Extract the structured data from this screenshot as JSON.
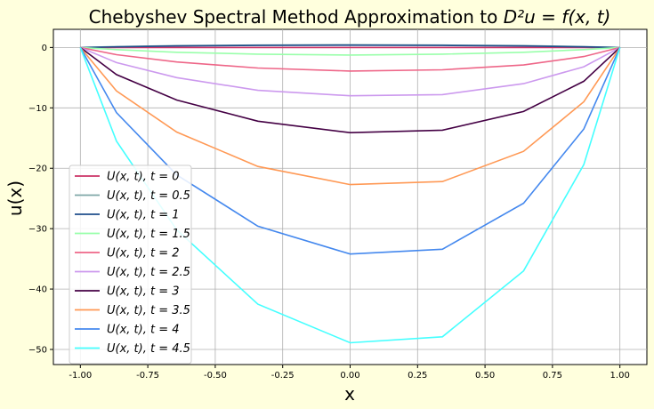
{
  "chart_data": {
    "type": "line",
    "title_text": "Chebyshev Spectral Method Approximation to ",
    "title_math": "D²u = f(x, t)",
    "xlabel": "x",
    "ylabel": "u(x)",
    "xlim": [
      -1.1,
      1.1
    ],
    "ylim": [
      -52.5,
      3.0
    ],
    "xticks": [
      "-1.00",
      "-0.75",
      "-0.50",
      "-0.25",
      "0.00",
      "0.25",
      "0.50",
      "0.75",
      "1.00"
    ],
    "xtick_values": [
      -1.0,
      -0.75,
      -0.5,
      -0.25,
      0.0,
      0.25,
      0.5,
      0.75,
      1.0
    ],
    "yticks": [
      "0",
      "−10",
      "−20",
      "−30",
      "−40",
      "−50"
    ],
    "ytick_values": [
      0,
      -10,
      -20,
      -30,
      -40,
      -50
    ],
    "grid": true,
    "legend_position": "lower-left",
    "x": [
      -1.0,
      -0.866,
      -0.643,
      -0.342,
      0.0,
      0.342,
      0.643,
      0.866,
      1.0
    ],
    "series": [
      {
        "name": "U(x, t), t = 0",
        "color": "#cc3366",
        "values": [
          0,
          0,
          0,
          0,
          0,
          0,
          0,
          0,
          0
        ]
      },
      {
        "name": "U(x, t), t = 0.5",
        "color": "#7fa8a8",
        "values": [
          0,
          0.15,
          0.3,
          0.4,
          0.45,
          0.4,
          0.3,
          0.15,
          0
        ]
      },
      {
        "name": "U(x, t), t = 1",
        "color": "#1f4e8c",
        "values": [
          0,
          0.1,
          0.25,
          0.33,
          0.38,
          0.33,
          0.25,
          0.1,
          0
        ]
      },
      {
        "name": "U(x, t), t = 1.5",
        "color": "#99ffaa",
        "values": [
          0,
          -0.35,
          -0.8,
          -1.1,
          -1.25,
          -1.1,
          -0.8,
          -0.35,
          0
        ]
      },
      {
        "name": "U(x, t), t = 2",
        "color": "#ee6688",
        "values": [
          0,
          -1.2,
          -2.4,
          -3.4,
          -3.9,
          -3.7,
          -2.9,
          -1.5,
          0
        ]
      },
      {
        "name": "U(x, t), t = 2.5",
        "color": "#cc99ee",
        "values": [
          0,
          -2.5,
          -5.0,
          -7.1,
          -8.0,
          -7.8,
          -6.0,
          -3.2,
          0
        ]
      },
      {
        "name": "U(x, t), t = 3",
        "color": "#440044",
        "values": [
          0,
          -4.5,
          -8.7,
          -12.2,
          -14.1,
          -13.7,
          -10.6,
          -5.6,
          0
        ]
      },
      {
        "name": "U(x, t), t = 3.5",
        "color": "#ff9955",
        "values": [
          0,
          -7.2,
          -14.0,
          -19.7,
          -22.7,
          -22.2,
          -17.2,
          -9.0,
          0
        ]
      },
      {
        "name": "U(x, t), t = 4",
        "color": "#4488ee",
        "values": [
          0,
          -10.8,
          -21.1,
          -29.6,
          -34.2,
          -33.4,
          -25.8,
          -13.5,
          0
        ]
      },
      {
        "name": "U(x, t), t = 4.5",
        "color": "#44ffff",
        "values": [
          0,
          -15.5,
          -30.2,
          -42.5,
          -48.9,
          -47.9,
          -37.0,
          -19.4,
          0
        ]
      }
    ]
  }
}
